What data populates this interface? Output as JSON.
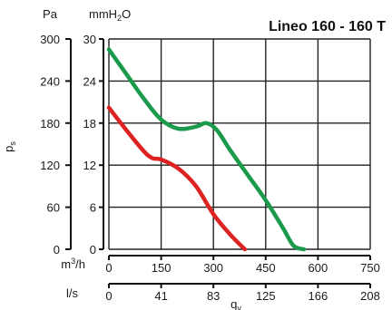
{
  "chart_data": {
    "type": "line",
    "title": "Lineo 160 - 160 T",
    "units": {
      "pa": "Pa",
      "mmh2o_main": "mmH",
      "mmh2o_sub": "2",
      "mmh2o_end": "O",
      "m3h_main": "m",
      "m3h_sup": "3",
      "m3h_end": "/h",
      "ls": "l/s",
      "ylabel_main": "p",
      "ylabel_sub": "s",
      "xlabel_main": "q",
      "xlabel_sub": "v"
    },
    "y_ticks_pa": [
      "0",
      "60",
      "120",
      "180",
      "240",
      "300"
    ],
    "y_ticks_mmh2o": [
      "0",
      "6",
      "12",
      "18",
      "24",
      "30"
    ],
    "x_ticks_m3h": [
      "0",
      "150",
      "300",
      "450",
      "600",
      "750"
    ],
    "x_ticks_ls": [
      "0",
      "41",
      "83",
      "125",
      "166",
      "208"
    ],
    "xlim": [
      0,
      750
    ],
    "ylim": [
      0,
      300
    ],
    "grid": true,
    "series": [
      {
        "color": "#1a9a4a",
        "x": [
          0,
          50,
          100,
          150,
          200,
          250,
          280,
          310,
          350,
          400,
          450,
          500,
          530,
          560
        ],
        "y": [
          285,
          250,
          215,
          185,
          172,
          175,
          180,
          170,
          140,
          105,
          70,
          30,
          5,
          0
        ]
      },
      {
        "color": "#dd2222",
        "x": [
          0,
          50,
          100,
          125,
          150,
          200,
          250,
          300,
          350,
          390
        ],
        "y": [
          202,
          170,
          140,
          130,
          128,
          115,
          90,
          50,
          20,
          0
        ]
      }
    ]
  }
}
